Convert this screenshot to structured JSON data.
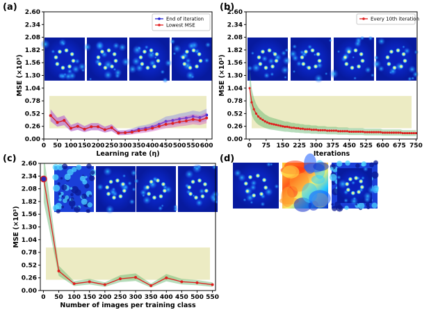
{
  "chart_data": [
    {
      "type": "line",
      "panel_label": "(a)",
      "xlabel": "Learning rate (η)",
      "ylabel": "MSE (×10³)",
      "xlim": [
        0,
        620
      ],
      "ylim": [
        0,
        2.6
      ],
      "xticks": [
        0,
        50,
        100,
        150,
        200,
        250,
        300,
        350,
        400,
        450,
        500,
        550,
        600
      ],
      "yticks": [
        "0.00",
        "0.26",
        "0.52",
        "0.78",
        "1.04",
        "1.30",
        "1.56",
        "1.82",
        "2.08",
        "2.34",
        "2.60"
      ],
      "legend_position": "top-right",
      "band_range": [
        0.22,
        0.88
      ],
      "x": [
        25,
        50,
        75,
        100,
        125,
        150,
        175,
        200,
        225,
        250,
        275,
        300,
        325,
        350,
        375,
        400,
        425,
        450,
        475,
        500,
        525,
        550,
        575,
        600
      ],
      "series": [
        {
          "name": "End of iteration",
          "color": "#1f1fd6",
          "values": [
            0.48,
            0.34,
            0.38,
            0.22,
            0.26,
            0.2,
            0.25,
            0.25,
            0.19,
            0.23,
            0.13,
            0.13,
            0.16,
            0.2,
            0.22,
            0.25,
            0.3,
            0.36,
            0.38,
            0.41,
            0.43,
            0.46,
            0.44,
            0.49
          ]
        },
        {
          "name": "Lowest MSE",
          "color": "#e01e1e",
          "values": [
            0.48,
            0.34,
            0.38,
            0.22,
            0.26,
            0.2,
            0.25,
            0.25,
            0.19,
            0.23,
            0.12,
            0.13,
            0.14,
            0.17,
            0.19,
            0.22,
            0.26,
            0.3,
            0.32,
            0.35,
            0.37,
            0.4,
            0.38,
            0.43
          ]
        }
      ],
      "inset_images": [
        "ring-pattern",
        "ring-pattern",
        "ring-pattern",
        "ring-pattern"
      ]
    },
    {
      "type": "line",
      "panel_label": "(b)",
      "xlabel": "Iterations",
      "ylabel": "MSE (×10³)",
      "xlim": [
        -15,
        755
      ],
      "ylim": [
        0,
        2.6
      ],
      "xticks": [
        0,
        75,
        150,
        225,
        300,
        375,
        450,
        525,
        600,
        675,
        750
      ],
      "yticks": [
        "0.00",
        "0.26",
        "0.52",
        "0.78",
        "1.04",
        "1.30",
        "1.56",
        "1.82",
        "2.08",
        "2.34",
        "2.60"
      ],
      "legend_position": "top-right",
      "band_range": [
        0.22,
        0.88
      ],
      "series": [
        {
          "name": "Every 10th iteration",
          "color": "#e01e1e",
          "x": [
            1,
            10,
            20,
            30,
            40,
            50,
            60,
            70,
            80,
            90,
            100,
            110,
            120,
            130,
            140,
            150,
            160,
            170,
            180,
            190,
            200,
            210,
            220,
            230,
            240,
            250,
            260,
            270,
            280,
            290,
            300,
            310,
            320,
            330,
            340,
            350,
            360,
            370,
            380,
            390,
            400,
            410,
            420,
            430,
            440,
            450,
            460,
            470,
            480,
            490,
            500,
            510,
            520,
            530,
            540,
            550,
            560,
            570,
            580,
            590,
            600,
            610,
            620,
            630,
            640,
            650,
            660,
            670,
            680,
            690,
            700,
            710,
            720,
            730,
            740,
            750
          ],
          "values": [
            1.04,
            0.75,
            0.61,
            0.52,
            0.46,
            0.42,
            0.39,
            0.36,
            0.34,
            0.32,
            0.31,
            0.3,
            0.29,
            0.28,
            0.27,
            0.26,
            0.25,
            0.25,
            0.24,
            0.23,
            0.23,
            0.22,
            0.22,
            0.21,
            0.21,
            0.2,
            0.2,
            0.2,
            0.19,
            0.19,
            0.19,
            0.18,
            0.18,
            0.18,
            0.18,
            0.17,
            0.17,
            0.17,
            0.17,
            0.17,
            0.16,
            0.16,
            0.16,
            0.16,
            0.16,
            0.15,
            0.15,
            0.15,
            0.15,
            0.15,
            0.15,
            0.15,
            0.14,
            0.14,
            0.14,
            0.14,
            0.14,
            0.14,
            0.14,
            0.14,
            0.13,
            0.13,
            0.13,
            0.13,
            0.13,
            0.13,
            0.13,
            0.13,
            0.13,
            0.12,
            0.12,
            0.12,
            0.12,
            0.12,
            0.12,
            0.12
          ]
        }
      ],
      "inset_images": [
        "ring-pattern",
        "ring-pattern",
        "ring-pattern",
        "ring-pattern"
      ]
    },
    {
      "type": "line",
      "panel_label": "(c)",
      "xlabel": "Number of images per training class",
      "ylabel": "MSE (×10³)",
      "xlim": [
        -10,
        560
      ],
      "ylim": [
        0,
        2.6
      ],
      "xticks": [
        0,
        50,
        100,
        150,
        200,
        250,
        300,
        350,
        400,
        450,
        500,
        550
      ],
      "yticks": [
        "0.00",
        "0.26",
        "0.52",
        "0.78",
        "1.04",
        "1.30",
        "1.56",
        "1.82",
        "2.08",
        "2.34",
        "2.60"
      ],
      "band_range": [
        0.22,
        0.88
      ],
      "highlight_point": {
        "x": 1,
        "y": 2.28
      },
      "x": [
        1,
        50,
        100,
        150,
        200,
        250,
        300,
        350,
        400,
        450,
        500,
        550
      ],
      "series": [
        {
          "color": "#e01e1e",
          "values": [
            2.28,
            0.4,
            0.14,
            0.18,
            0.12,
            0.24,
            0.27,
            0.1,
            0.26,
            0.18,
            0.16,
            0.12
          ]
        }
      ],
      "inset_images": [
        "speckle-pattern",
        "ring-pattern",
        "ring-pattern",
        "ring-pattern"
      ]
    },
    {
      "type": "image",
      "panel_label": "(d)",
      "images": [
        "ring-pattern",
        "phase-mask",
        "speckle-ring-pattern"
      ]
    }
  ]
}
